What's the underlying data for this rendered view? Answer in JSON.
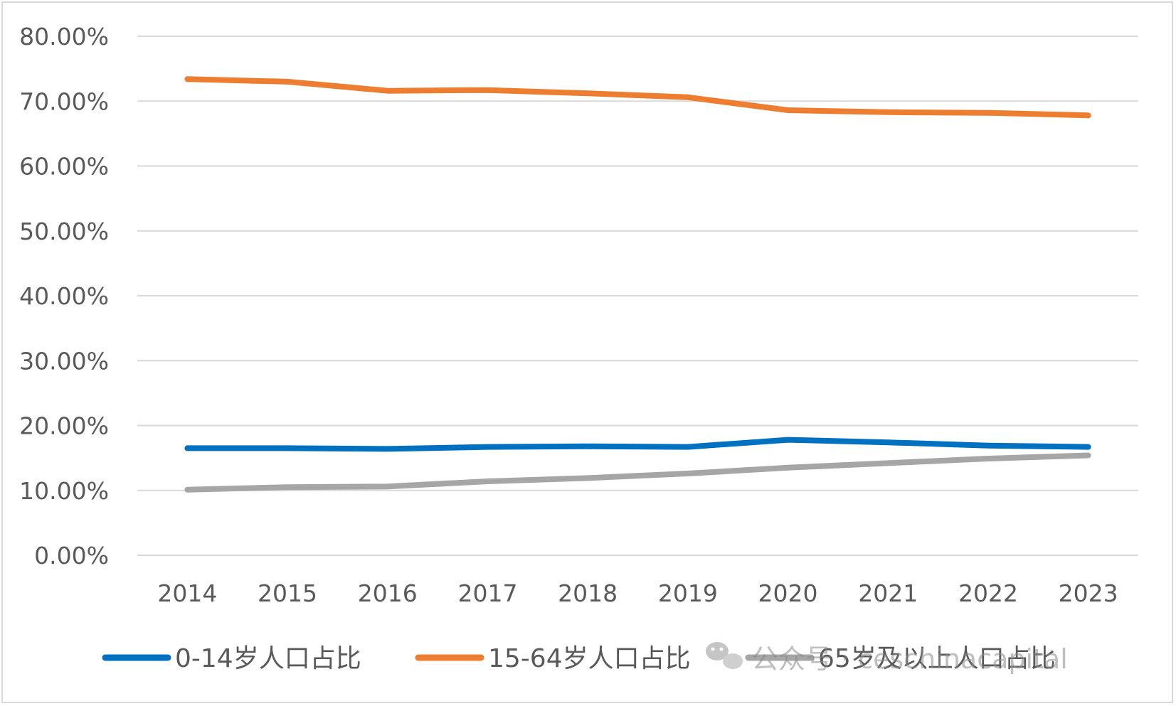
{
  "chart_data": {
    "type": "line",
    "title": "",
    "xlabel": "",
    "ylabel": "",
    "categories": [
      "2014",
      "2015",
      "2016",
      "2017",
      "2018",
      "2019",
      "2020",
      "2021",
      "2022",
      "2023"
    ],
    "ylim": [
      0,
      80
    ],
    "yticks": [
      "0.00%",
      "10.00%",
      "20.00%",
      "30.00%",
      "40.00%",
      "50.00%",
      "60.00%",
      "70.00%",
      "80.00%"
    ],
    "grid": true,
    "legend_position": "bottom",
    "series": [
      {
        "name": "0-14岁人口占比",
        "color": "#0070c0",
        "values": [
          16.5,
          16.5,
          16.4,
          16.7,
          16.8,
          16.7,
          17.8,
          17.4,
          16.9,
          16.7
        ]
      },
      {
        "name": "15-64岁人口占比",
        "color": "#ed7d31",
        "values": [
          73.4,
          73.0,
          71.6,
          71.7,
          71.2,
          70.6,
          68.6,
          68.3,
          68.2,
          67.8
        ]
      },
      {
        "name": "65岁及以上人口占比",
        "color": "#a6a6a6",
        "values": [
          10.1,
          10.5,
          10.6,
          11.4,
          11.9,
          12.6,
          13.5,
          14.2,
          14.9,
          15.4
        ]
      }
    ]
  },
  "watermark": {
    "text": "公众号 · ceschinacapital",
    "icon": "wechat-icon"
  }
}
